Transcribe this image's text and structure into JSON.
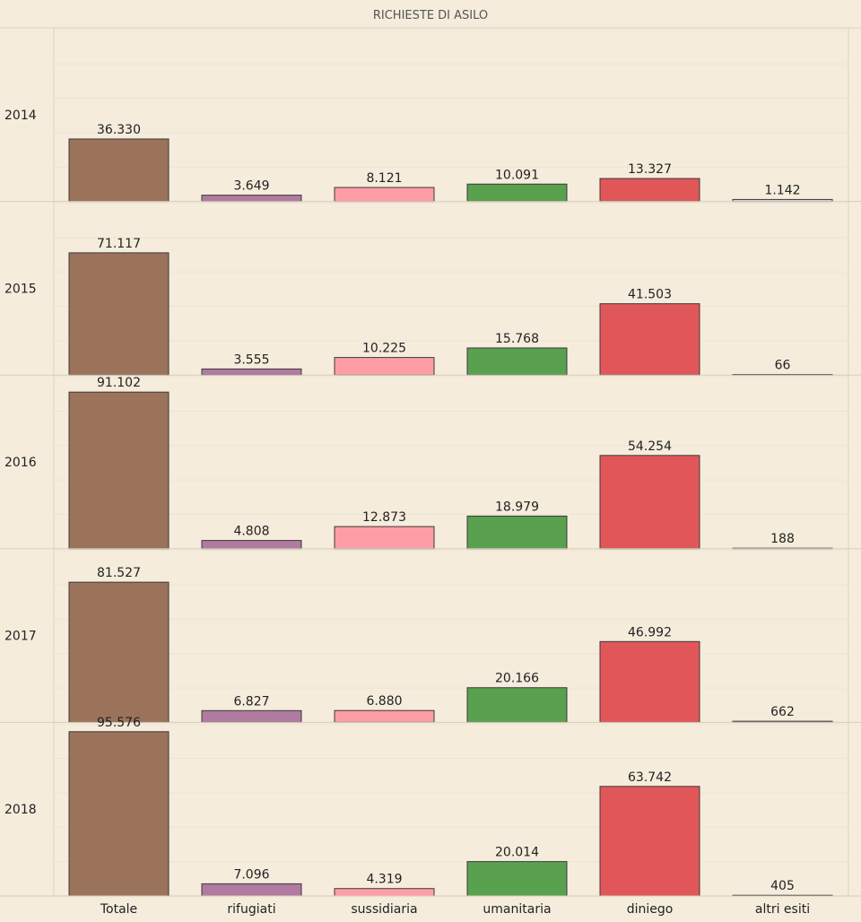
{
  "chart_data": {
    "type": "bar",
    "title": "RICHIESTE DI ASILO",
    "categories": [
      "Totale",
      "rifugiati",
      "sussidiaria",
      "umanitaria",
      "diniego",
      "altri esiti"
    ],
    "colors": [
      "#9b735a",
      "#b07aa1",
      "#ff9da7",
      "#59a14f",
      "#e15759",
      "#d3d3d3"
    ],
    "ylim": [
      0,
      100000
    ],
    "grid": true,
    "legend": "none",
    "rows": [
      {
        "label": "2014",
        "values": [
          36330,
          3649,
          8121,
          10091,
          13327,
          1142
        ],
        "value_labels": [
          "36.330",
          "3.649",
          "8.121",
          "10.091",
          "13.327",
          "1.142"
        ]
      },
      {
        "label": "2015",
        "values": [
          71117,
          3555,
          10225,
          15768,
          41503,
          66
        ],
        "value_labels": [
          "71.117",
          "3.555",
          "10.225",
          "15.768",
          "41.503",
          "66"
        ]
      },
      {
        "label": "2016",
        "values": [
          91102,
          4808,
          12873,
          18979,
          54254,
          188
        ],
        "value_labels": [
          "91.102",
          "4.808",
          "12.873",
          "18.979",
          "54.254",
          "188"
        ]
      },
      {
        "label": "2017",
        "values": [
          81527,
          6827,
          6880,
          20166,
          46992,
          662
        ],
        "value_labels": [
          "81.527",
          "6.827",
          "6.880",
          "20.166",
          "46.992",
          "662"
        ]
      },
      {
        "label": "2018",
        "values": [
          95576,
          7096,
          4319,
          20014,
          63742,
          405
        ],
        "value_labels": [
          "95.576",
          "7.096",
          "4.319",
          "20.014",
          "63.742",
          "405"
        ]
      }
    ]
  }
}
